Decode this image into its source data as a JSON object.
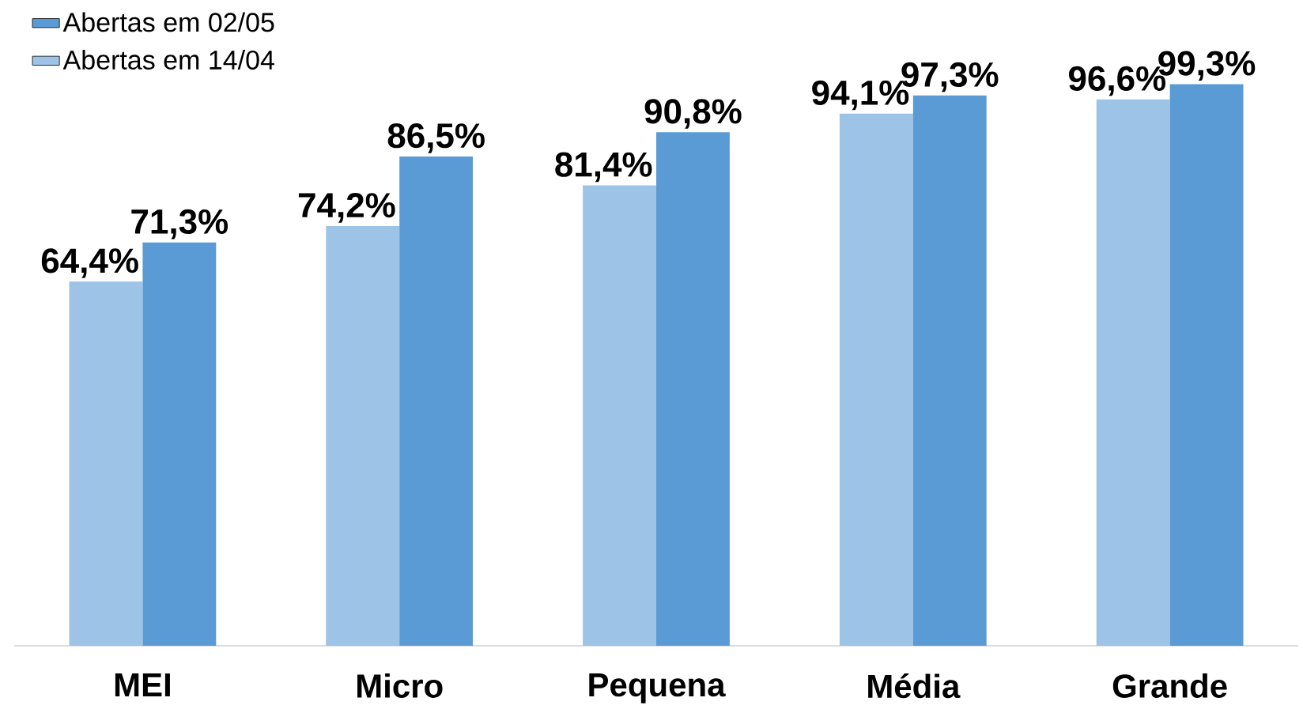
{
  "chart_data": {
    "type": "bar",
    "categories": [
      "MEI",
      "Micro",
      "Pequena",
      "Média",
      "Grande"
    ],
    "series": [
      {
        "name": "Abertas em 14/04",
        "color": "#9dc3e6",
        "values": [
          64.4,
          74.2,
          81.4,
          94.1,
          96.6
        ],
        "value_labels": [
          "64,4%",
          "74,2%",
          "81,4%",
          "94,1%",
          "96,6%"
        ]
      },
      {
        "name": "Abertas em 02/05",
        "color": "#5b9bd5",
        "values": [
          71.3,
          86.5,
          90.8,
          97.3,
          99.3
        ],
        "value_labels": [
          "71,3%",
          "86,5%",
          "90,8%",
          "97,3%",
          "99,3%"
        ]
      }
    ],
    "legend": "top left"
  }
}
